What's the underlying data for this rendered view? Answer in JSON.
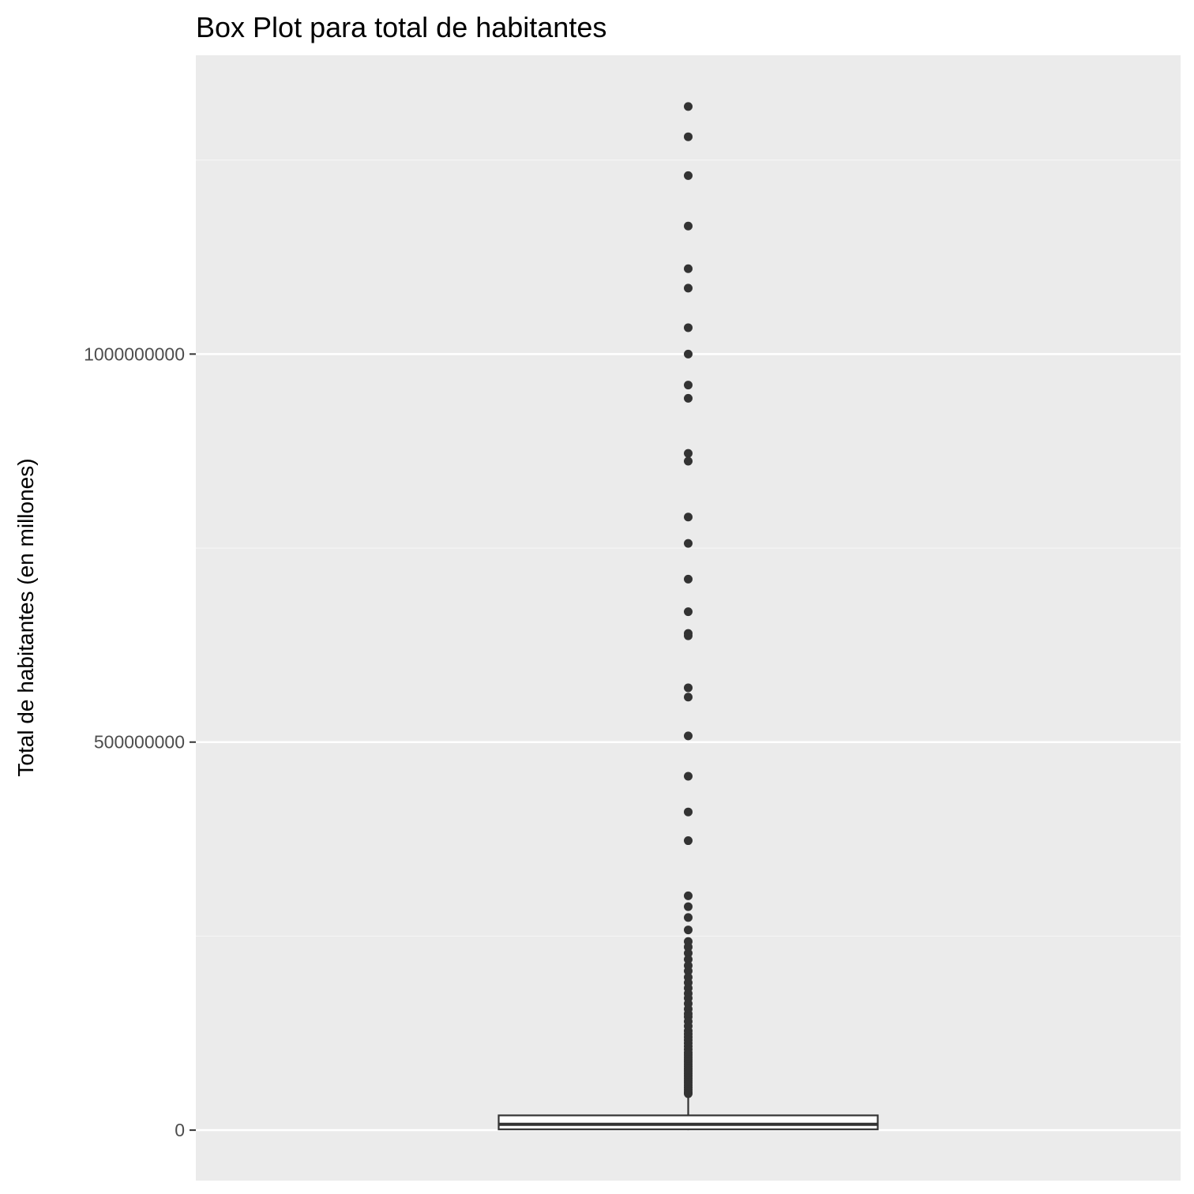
{
  "chart_data": {
    "type": "boxplot",
    "title": "Box Plot para total de habitantes",
    "xlabel": "",
    "ylabel": "Total de habitantes (en millones)",
    "ylim": [
      -65000000,
      1385000000
    ],
    "yticks": [
      {
        "value": 0,
        "label": "0"
      },
      {
        "value": 500000000,
        "label": "500000000"
      },
      {
        "value": 1000000000,
        "label": "1000000000"
      }
    ],
    "yminor": [
      250000000,
      750000000,
      1250000000
    ],
    "grid": true,
    "panel_color": "#ebebeb",
    "box": {
      "q1": 1000000,
      "median": 7500000,
      "q3": 19000000,
      "whisker_low": 0,
      "whisker_high": 45000000
    },
    "outliers": [
      1319000000,
      1280000000,
      1230000000,
      1165000000,
      1110000000,
      1085000000,
      1034000000,
      1000000000,
      960000000,
      943000000,
      872000000,
      862000000,
      790000000,
      756000000,
      710000000,
      668000000,
      640000000,
      637000000,
      570000000,
      558000000,
      508000000,
      456000000,
      410000000,
      373000000,
      302000000,
      288000000,
      274000000,
      258000000,
      243000000,
      236000000,
      228000000,
      220000000,
      212000000,
      205000000,
      197000000,
      190000000,
      183000000,
      176000000,
      170000000,
      163000000,
      156000000,
      150000000,
      146000000,
      140000000,
      134000000,
      128000000,
      124000000,
      120000000,
      116000000,
      112000000,
      108000000,
      104000000,
      100000000,
      97000000,
      94000000,
      91000000,
      88000000,
      85000000,
      82000000,
      79000000,
      76000000,
      73000000,
      70000000,
      67000000,
      64000000,
      61000000,
      58000000,
      55000000,
      52000000,
      49000000,
      47000000
    ],
    "colors": {
      "box_line": "#333333",
      "points": "#333333",
      "grid_major": "#ffffff",
      "grid_minor": "#f5f5f5",
      "tick_text": "#4d4d4d"
    }
  }
}
